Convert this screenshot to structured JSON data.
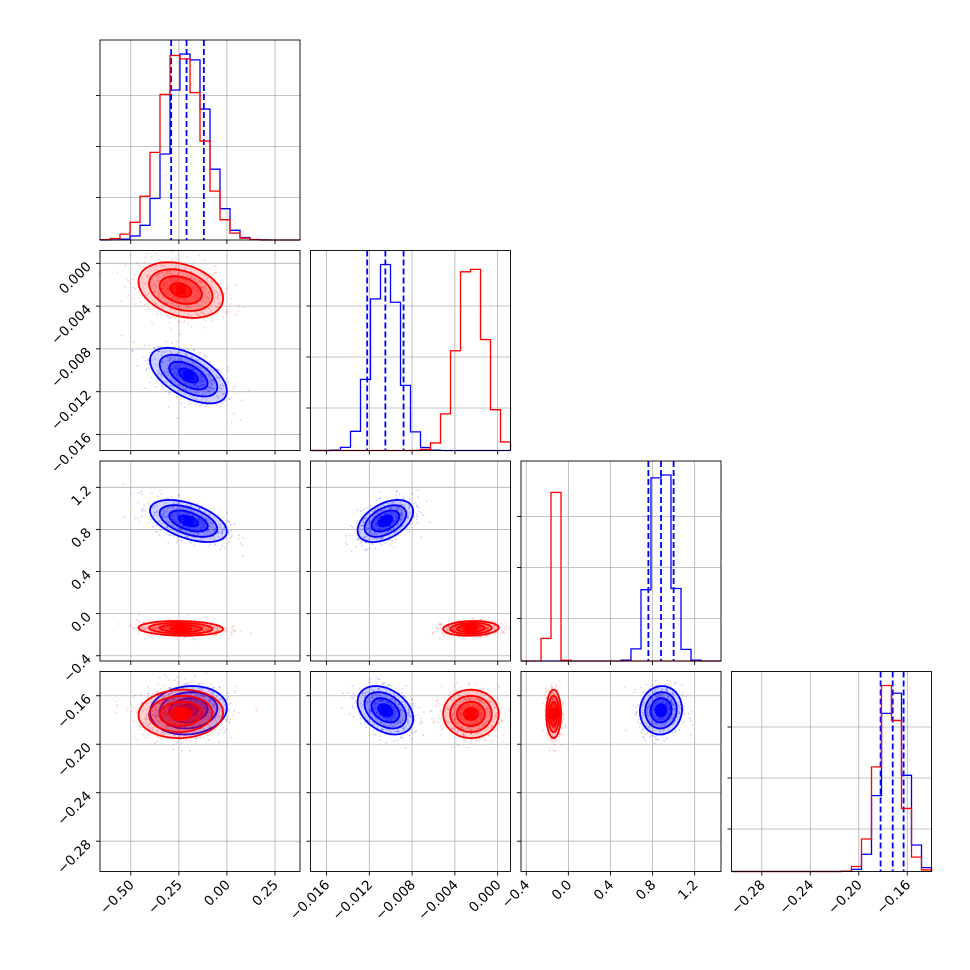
{
  "chart_data": {
    "type": "corner",
    "title": "",
    "colors": {
      "series_a": "#0000ff",
      "series_b": "#ff0000",
      "grid": "#b0b0b0",
      "frame": "#000000"
    },
    "series": [
      {
        "color": "blue",
        "means": [
          -0.2,
          -0.0105,
          0.88,
          -0.172
        ],
        "sds": [
          0.1,
          0.0013,
          0.1,
          0.01
        ],
        "quantiles": [
          [
            -0.29,
            -0.21,
            -0.12
          ],
          [
            -0.0122,
            -0.0105,
            -0.0088
          ],
          [
            0.76,
            0.88,
            1.0
          ],
          [
            -0.182,
            -0.172,
            -0.163
          ]
        ]
      },
      {
        "color": "red",
        "means": [
          -0.24,
          -0.0025,
          -0.14,
          -0.175
        ],
        "sds": [
          0.11,
          0.0013,
          0.035,
          0.01
        ],
        "quantiles": [
          [],
          [],
          [],
          []
        ]
      }
    ],
    "correlations": {
      "blue": {
        "0-1": -0.55,
        "0-2": -0.5,
        "1-2": 0.45,
        "0-3": 0.1,
        "1-3": -0.35,
        "2-3": 0.05
      },
      "red": {
        "0-1": -0.3,
        "0-2": -0.1,
        "1-2": 0.1,
        "0-3": 0.05,
        "1-3": 0.0,
        "2-3": 0.0
      }
    },
    "axes": [
      {
        "range": [
          -0.66,
          0.38
        ],
        "ticks": [
          -0.5,
          -0.25,
          0.0,
          0.25
        ],
        "tick_labels": [
          "−0.50",
          "−0.25",
          "0.00",
          "0.25"
        ]
      },
      {
        "range": [
          -0.0175,
          0.0012
        ],
        "ticks": [
          -0.016,
          -0.012,
          -0.008,
          -0.004,
          0.0
        ],
        "tick_labels": [
          "−0.016",
          "−0.012",
          "−0.008",
          "−0.004",
          "0.000"
        ]
      },
      {
        "range": [
          -0.45,
          1.45
        ],
        "ticks": [
          -0.4,
          0.0,
          0.4,
          0.8,
          1.2
        ],
        "tick_labels": [
          "−0.4",
          "0.0",
          "0.4",
          "0.8",
          "1.2"
        ]
      },
      {
        "range": [
          -0.305,
          -0.14
        ],
        "ticks": [
          -0.28,
          -0.24,
          -0.2,
          -0.16
        ],
        "tick_labels": [
          "−0.28",
          "−0.24",
          "−0.20",
          "−0.16"
        ]
      }
    ],
    "grid": true
  }
}
